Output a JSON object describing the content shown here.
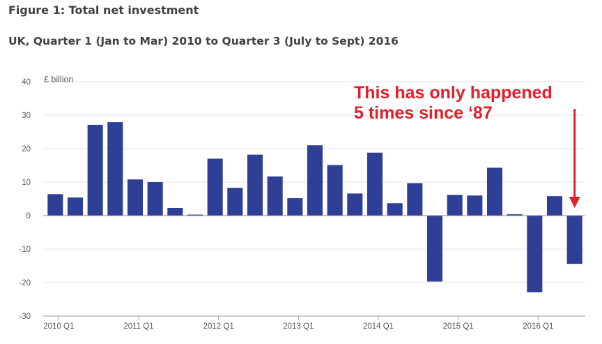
{
  "header": {
    "title": "Figure 1: Total net investment",
    "subtitle": "UK, Quarter 1 (Jan to Mar) 2010 to Quarter 3 (July to Sept) 2016"
  },
  "annotation": {
    "line1": "This has only happened",
    "line2": "5 times since ‘87",
    "color": "#e0202a"
  },
  "chart_data": {
    "type": "bar",
    "title": "Figure 1: Total net investment",
    "subtitle": "UK, Quarter 1 (Jan to Mar) 2010 to Quarter 3 (July to Sept) 2016",
    "ylabel": "£ billion",
    "xlabel": "",
    "ylim": [
      -30,
      40
    ],
    "yticks": [
      40,
      30,
      20,
      10,
      0,
      -10,
      -20,
      -30
    ],
    "grid": true,
    "bar_color": "#303f96",
    "categories": [
      "2010 Q1",
      "2010 Q2",
      "2010 Q3",
      "2010 Q4",
      "2011 Q1",
      "2011 Q2",
      "2011 Q3",
      "2011 Q4",
      "2012 Q1",
      "2012 Q2",
      "2012 Q3",
      "2012 Q4",
      "2013 Q1",
      "2013 Q2",
      "2013 Q3",
      "2013 Q4",
      "2014 Q1",
      "2014 Q2",
      "2014 Q3",
      "2014 Q4",
      "2015 Q1",
      "2015 Q2",
      "2015 Q3",
      "2015 Q4",
      "2016 Q1",
      "2016 Q2",
      "2016 Q3"
    ],
    "xtick_labels": [
      "2010 Q1",
      "2011 Q1",
      "2012 Q1",
      "2013 Q1",
      "2014 Q1",
      "2015 Q1",
      "2016 Q1"
    ],
    "values": [
      6.4,
      5.4,
      27.1,
      27.9,
      10.8,
      10.0,
      2.3,
      0.3,
      17.0,
      8.3,
      18.2,
      11.7,
      5.2,
      21.0,
      15.1,
      6.6,
      18.8,
      3.7,
      9.7,
      -19.7,
      6.2,
      6.0,
      14.3,
      0.4,
      -22.9,
      5.8,
      -14.4
    ]
  }
}
